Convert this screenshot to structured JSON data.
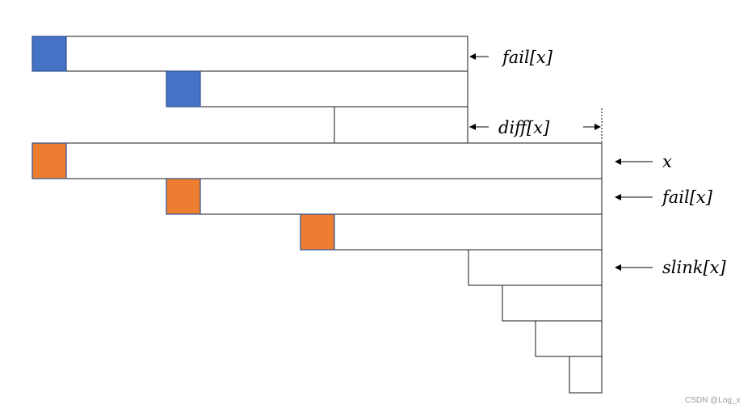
{
  "labels": {
    "fail_top": "fail[x]",
    "diff": "diff[x]",
    "x": "x",
    "fail": "fail[x]",
    "slink": "slink[x]"
  },
  "watermark": "CSDN @Log_x",
  "colors": {
    "blue_block": "#4472c4",
    "orange_block": "#ed7d31",
    "outline": "#1a1a1a"
  }
}
